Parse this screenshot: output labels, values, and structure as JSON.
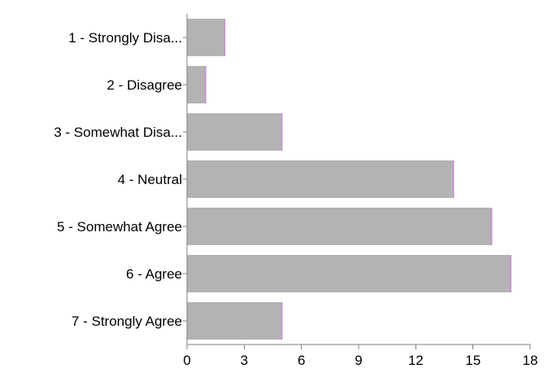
{
  "chart_data": {
    "type": "bar",
    "orientation": "horizontal",
    "categories": [
      "1 - Strongly Disa...",
      "2 - Disagree",
      "3 - Somewhat Disa...",
      "4 - Neutral",
      "5 - Somewhat Agree",
      "6 - Agree",
      "7 - Strongly Agree"
    ],
    "values": [
      2,
      1,
      5,
      14,
      16,
      17,
      5
    ],
    "xlim": [
      0,
      18
    ],
    "xticks": [
      "0",
      "3",
      "6",
      "9",
      "12",
      "15",
      "18"
    ],
    "title": "",
    "xlabel": "",
    "ylabel": "",
    "grid": false,
    "legend": "none",
    "colors": {
      "bar_fill": "#b3b3b3",
      "bar_edge": "#c88ad8",
      "axis": "#7f7f7f",
      "text": "#000000"
    }
  }
}
